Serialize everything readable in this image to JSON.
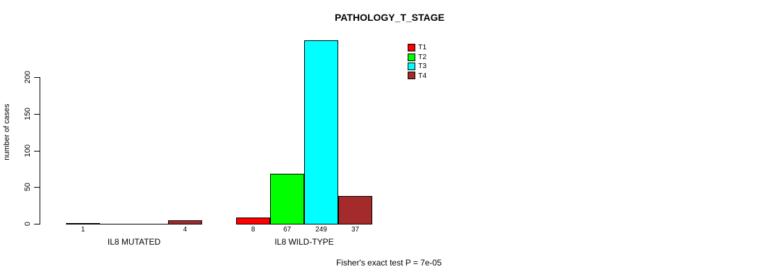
{
  "chart_data": {
    "type": "bar",
    "title": "PATHOLOGY_T_STAGE",
    "ylabel": "number of cases",
    "xlabel": "",
    "yticks": [
      0,
      50,
      100,
      150,
      200
    ],
    "ylim": [
      0,
      249
    ],
    "grid": false,
    "legend_position": "top-right",
    "legend": [
      {
        "label": "T1",
        "color": "#FF0000"
      },
      {
        "label": "T2",
        "color": "#00FF00"
      },
      {
        "label": "T3",
        "color": "#00FFFF"
      },
      {
        "label": "T4",
        "color": "#A52A2A"
      }
    ],
    "categories": [
      "IL8 MUTATED",
      "IL8 WILD-TYPE"
    ],
    "series": [
      {
        "name": "T1",
        "values": [
          1,
          8
        ]
      },
      {
        "name": "T2",
        "values": [
          0,
          67
        ]
      },
      {
        "name": "T3",
        "values": [
          0,
          249
        ]
      },
      {
        "name": "T4",
        "values": [
          4,
          37
        ]
      }
    ],
    "groups": [
      {
        "label": "IL8 MUTATED",
        "values": [
          1,
          0,
          0,
          4
        ],
        "bar_labels": [
          "1",
          "",
          "",
          "4"
        ]
      },
      {
        "label": "IL8 WILD-TYPE",
        "values": [
          8,
          67,
          249,
          37
        ],
        "bar_labels": [
          "8",
          "67",
          "249",
          "37"
        ]
      }
    ],
    "footnote": "Fisher's exact test P = 7e-05"
  }
}
